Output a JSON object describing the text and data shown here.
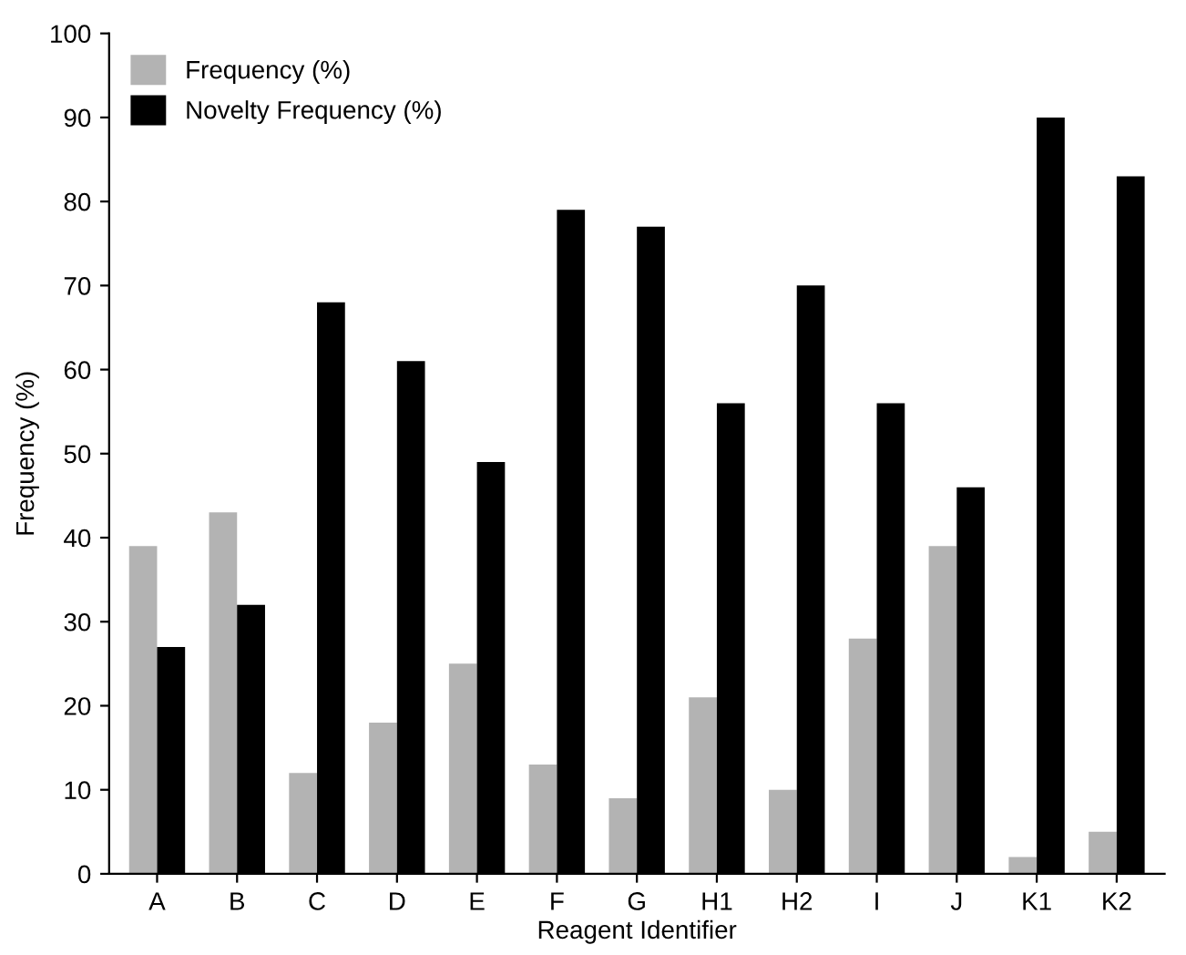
{
  "chart_data": {
    "type": "bar",
    "xlabel": "Reagent Identifier",
    "ylabel": "Frequency (%)",
    "categories": [
      "A",
      "B",
      "C",
      "D",
      "E",
      "F",
      "G",
      "H1",
      "H2",
      "I",
      "J",
      "K1",
      "K2"
    ],
    "series": [
      {
        "name": "Frequency (%)",
        "color": "#b3b3b3",
        "values": [
          39,
          43,
          12,
          18,
          25,
          13,
          9,
          21,
          10,
          28,
          39,
          2,
          5
        ]
      },
      {
        "name": "Novelty Frequency (%)",
        "color": "#000000",
        "values": [
          27,
          32,
          68,
          61,
          49,
          79,
          77,
          56,
          70,
          56,
          46,
          90,
          83
        ]
      }
    ],
    "ylim": [
      0,
      100
    ],
    "yticks": [
      0,
      10,
      20,
      30,
      40,
      50,
      60,
      70,
      80,
      90,
      100
    ],
    "grid": false,
    "legend": "top left"
  }
}
